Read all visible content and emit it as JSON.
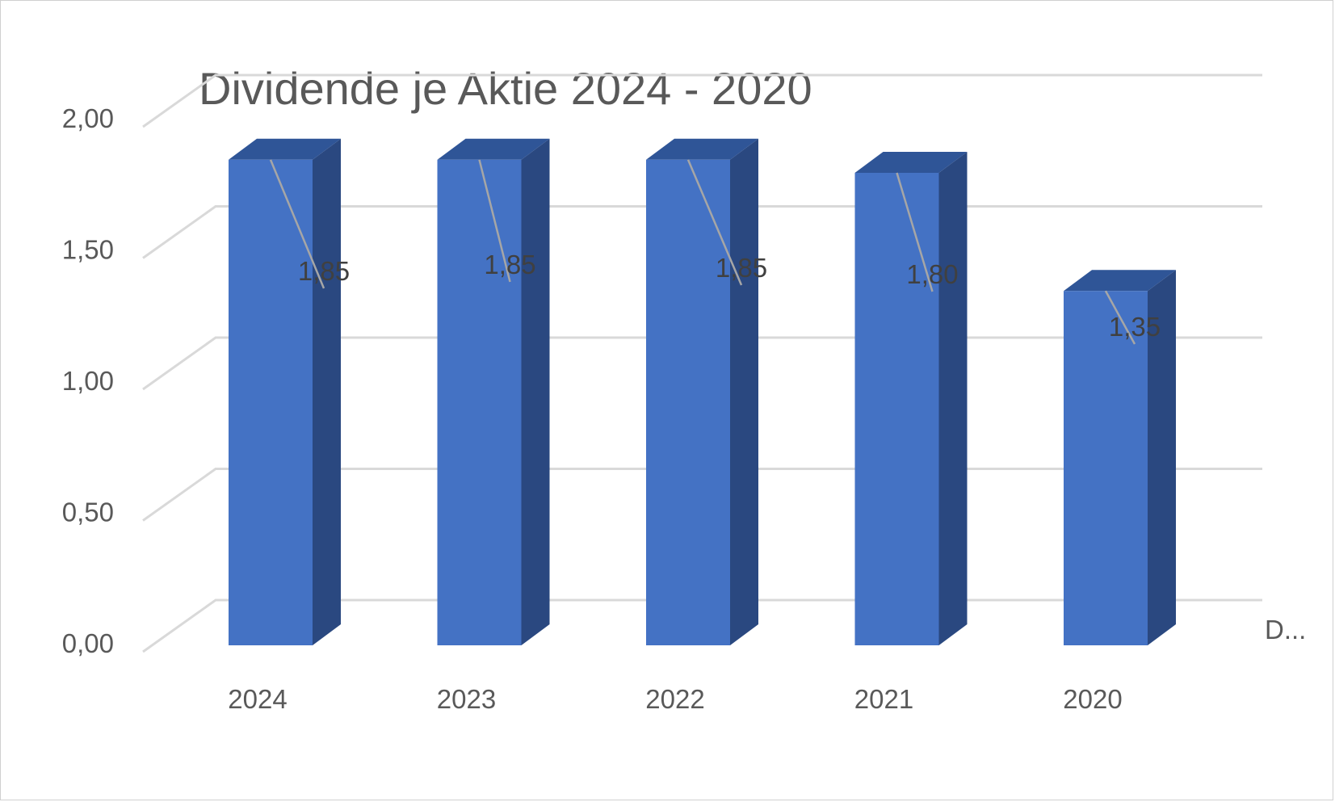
{
  "chart_data": {
    "type": "bar",
    "title": "Dividende je Aktie 2024 - 2020",
    "categories": [
      "2024",
      "2023",
      "2022",
      "2021",
      "2020"
    ],
    "series": [
      {
        "name": "D...",
        "values": [
          1.85,
          1.85,
          1.85,
          1.8,
          1.35
        ]
      }
    ],
    "data_labels": [
      "1,85",
      "1,85",
      "1,85",
      "1,80",
      "1,35"
    ],
    "y_tick_labels": [
      "0,00",
      "0,50",
      "1,00",
      "1,50",
      "2,00"
    ],
    "y_ticks": [
      0,
      0.5,
      1.0,
      1.5,
      2.0
    ],
    "ylim": [
      0,
      2.0
    ],
    "xlabel": "",
    "ylabel": "",
    "grid": true,
    "style": "3d-column",
    "colors": {
      "bar_front": "#4472C4",
      "bar_top": "#2F5597",
      "bar_side": "#2A4880",
      "gridline": "#D9D9D9",
      "leader_line": "#A6A6A6",
      "text": "#595959"
    }
  }
}
